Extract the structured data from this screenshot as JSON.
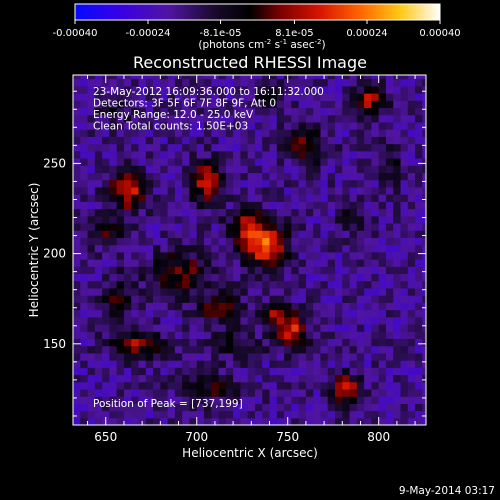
{
  "chart_data": {
    "type": "heatmap",
    "title": "Reconstructed RHESSI Image",
    "xlabel": "Heliocentric X (arcsec)",
    "ylabel": "Heliocentric Y (arcsec)",
    "xlim": [
      632,
      826
    ],
    "ylim": [
      105,
      299
    ],
    "x_ticks": [
      650,
      700,
      750,
      800
    ],
    "y_ticks": [
      150,
      200,
      250
    ],
    "colorbar": {
      "min": -0.0004,
      "max": 0.0004,
      "tick_values": [
        -0.0004,
        -0.00024,
        -8.1e-05,
        8.1e-05,
        0.00024,
        0.0004
      ],
      "tick_labels": [
        "-0.00040",
        "-0.00024",
        "-8.1e-05",
        "8.1e-05",
        "0.00024",
        "0.00040"
      ],
      "unit_label_parts": [
        "(photons cm",
        "-2",
        " s",
        "-1",
        " asec",
        "-2",
        ")"
      ]
    },
    "annotations": [
      "23-May-2012 16:09:36.000 to 16:11:32.000",
      "Detectors: 3F 5F 6F 7F 8F 9F, Att 0",
      "Energy Range: 12.0 - 25.0 keV",
      "Clean    Total counts: 1.50E+03"
    ],
    "peak_label": "Position of Peak = [737,199]",
    "peak": [
      737,
      199
    ],
    "footer_date": "9-May-2014 03:17",
    "sources": [
      {
        "x": 737,
        "y": 205,
        "amp": 0.0004,
        "sx": 9,
        "sy": 8
      },
      {
        "x": 727,
        "y": 218,
        "amp": 0.00022,
        "sx": 7,
        "sy": 6
      },
      {
        "x": 752,
        "y": 158,
        "amp": 0.00033,
        "sx": 6,
        "sy": 7
      },
      {
        "x": 742,
        "y": 168,
        "amp": 0.0002,
        "sx": 5,
        "sy": 5
      },
      {
        "x": 705,
        "y": 240,
        "amp": 0.0003,
        "sx": 6,
        "sy": 8
      },
      {
        "x": 662,
        "y": 235,
        "amp": 0.00032,
        "sx": 7,
        "sy": 7
      },
      {
        "x": 652,
        "y": 212,
        "amp": 0.00016,
        "sx": 8,
        "sy": 6
      },
      {
        "x": 668,
        "y": 150,
        "amp": 0.00024,
        "sx": 10,
        "sy": 6
      },
      {
        "x": 713,
        "y": 170,
        "amp": 0.0002,
        "sx": 9,
        "sy": 6
      },
      {
        "x": 690,
        "y": 190,
        "amp": 0.00022,
        "sx": 12,
        "sy": 8
      },
      {
        "x": 760,
        "y": 260,
        "amp": 0.00022,
        "sx": 8,
        "sy": 7
      },
      {
        "x": 795,
        "y": 285,
        "amp": 0.00026,
        "sx": 6,
        "sy": 6
      },
      {
        "x": 807,
        "y": 250,
        "amp": 0.00012,
        "sx": 4,
        "sy": 12
      },
      {
        "x": 785,
        "y": 222,
        "amp": 0.00016,
        "sx": 5,
        "sy": 6
      },
      {
        "x": 782,
        "y": 125,
        "amp": 0.00028,
        "sx": 6,
        "sy": 6
      },
      {
        "x": 705,
        "y": 125,
        "amp": 0.00017,
        "sx": 12,
        "sy": 5
      },
      {
        "x": 720,
        "y": 150,
        "amp": 0.00014,
        "sx": 10,
        "sy": 6
      },
      {
        "x": 657,
        "y": 175,
        "amp": 0.00015,
        "sx": 6,
        "sy": 10
      },
      {
        "x": 740,
        "y": 288,
        "amp": 0.00014,
        "sx": 6,
        "sy": 5
      },
      {
        "x": 655,
        "y": 280,
        "amp": 0.00012,
        "sx": 6,
        "sy": 5
      }
    ],
    "background_level": -0.00018
  }
}
